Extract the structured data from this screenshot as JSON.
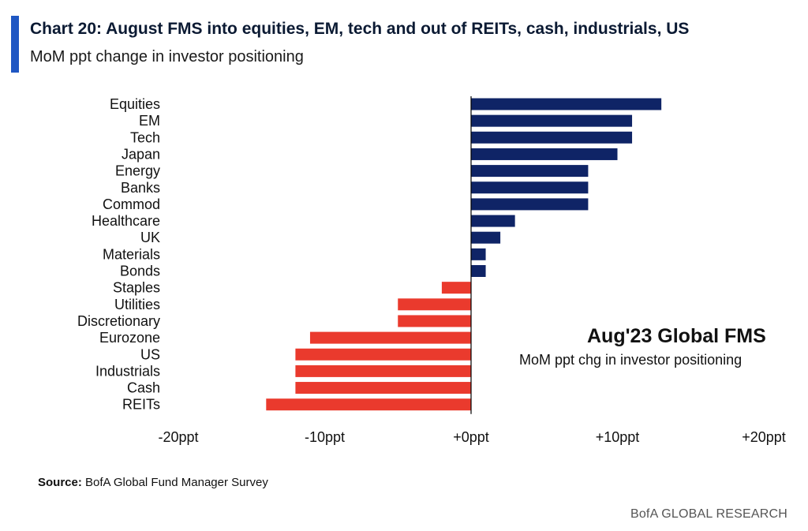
{
  "header": {
    "title": "Chart 20: August FMS into equities, EM, tech and out of REITs, cash, industrials, US",
    "subtitle": "MoM ppt change in investor positioning"
  },
  "annotation": {
    "title": "Aug'23 Global FMS",
    "subtitle": "MoM ppt chg in investor positioning"
  },
  "footer": {
    "source_label": "Source:",
    "source_text": "BofA Global Fund Manager Survey",
    "brand": "BofA GLOBAL RESEARCH"
  },
  "colors": {
    "positive": "#0f2466",
    "negative": "#ea3a2d",
    "accent": "#1f57c3"
  },
  "chart_data": {
    "type": "bar",
    "orientation": "horizontal",
    "categories": [
      "Equities",
      "EM",
      "Tech",
      "Japan",
      "Energy",
      "Banks",
      "Commod",
      "Healthcare",
      "UK",
      "Materials",
      "Bonds",
      "Staples",
      "Utilities",
      "Discretionary",
      "Eurozone",
      "US",
      "Industrials",
      "Cash",
      "REITs"
    ],
    "values": [
      13,
      11,
      11,
      10,
      8,
      8,
      8,
      3,
      2,
      1,
      1,
      -2,
      -5,
      -5,
      -11,
      -12,
      -12,
      -12,
      -14
    ],
    "xlim": [
      -20,
      20
    ],
    "xticks": [
      -20,
      -10,
      0,
      10,
      20
    ],
    "xtick_labels": [
      "-20ppt",
      "-10ppt",
      "+0ppt",
      "+10ppt",
      "+20ppt"
    ],
    "xlabel": "",
    "ylabel": "",
    "grid": false,
    "legend": "none"
  }
}
